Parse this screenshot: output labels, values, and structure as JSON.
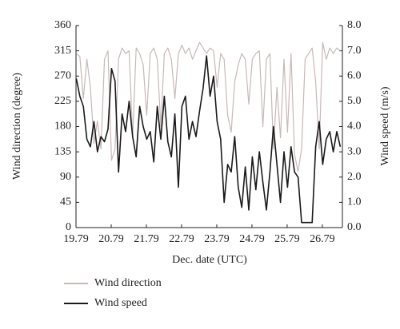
{
  "chart_data": {
    "type": "line",
    "x_label": "Dec. date (UTC)",
    "y_label": "Wind direction (degree)",
    "y2_label": "Wind speed (m/s)",
    "xlim": [
      19.79,
      27.36
    ],
    "xticks": [
      19.79,
      20.79,
      21.79,
      22.79,
      23.79,
      24.79,
      25.79,
      26.79
    ],
    "ylim": [
      0,
      360
    ],
    "yticks": [
      0,
      45,
      90,
      135,
      180,
      225,
      270,
      315,
      360
    ],
    "y2lim": [
      0,
      8
    ],
    "y2ticks": [
      {
        "value": 0,
        "label": "0.0"
      },
      {
        "value": 1,
        "label": "1.0"
      },
      {
        "value": 2,
        "label": "2.0"
      },
      {
        "value": 3,
        "label": "3.0"
      },
      {
        "value": 4,
        "label": "4.0"
      },
      {
        "value": 5,
        "label": "5.0"
      },
      {
        "value": 6,
        "label": "6.0"
      },
      {
        "value": 7,
        "label": "7.0"
      },
      {
        "value": 8,
        "label": "8.0"
      }
    ],
    "x": [
      19.8,
      19.9,
      20.0,
      20.1,
      20.2,
      20.3,
      20.4,
      20.5,
      20.6,
      20.7,
      20.8,
      20.9,
      21.0,
      21.1,
      21.2,
      21.3,
      21.4,
      21.5,
      21.6,
      21.7,
      21.8,
      21.9,
      22.0,
      22.1,
      22.2,
      22.3,
      22.4,
      22.5,
      22.6,
      22.7,
      22.8,
      22.9,
      23.0,
      23.1,
      23.2,
      23.3,
      23.4,
      23.5,
      23.6,
      23.7,
      23.8,
      23.9,
      24.0,
      24.1,
      24.2,
      24.3,
      24.4,
      24.5,
      24.6,
      24.7,
      24.8,
      24.9,
      25.0,
      25.1,
      25.2,
      25.3,
      25.4,
      25.5,
      25.6,
      25.7,
      25.8,
      25.9,
      26.0,
      26.1,
      26.2,
      26.3,
      26.4,
      26.5,
      26.6,
      26.7,
      26.8,
      26.9,
      27.0,
      27.1,
      27.2,
      27.3
    ],
    "series": [
      {
        "name": "Wind direction",
        "color": "#c9b8b8",
        "values": [
          310,
          305,
          230,
          300,
          250,
          150,
          190,
          140,
          300,
          315,
          120,
          140,
          300,
          320,
          310,
          315,
          160,
          320,
          310,
          290,
          200,
          310,
          320,
          300,
          180,
          310,
          320,
          300,
          230,
          310,
          325,
          310,
          320,
          300,
          315,
          330,
          320,
          310,
          320,
          315,
          250,
          310,
          300,
          200,
          170,
          260,
          290,
          310,
          300,
          220,
          300,
          310,
          315,
          180,
          300,
          310,
          140,
          250,
          160,
          300,
          170,
          310,
          130,
          100,
          140,
          300,
          310,
          320,
          260,
          140,
          330,
          300,
          320,
          310,
          320,
          315
        ]
      },
      {
        "name": "Wind speed",
        "color": "#1a1a1a",
        "axis": "y2",
        "values": [
          5.9,
          5.2,
          4.8,
          3.5,
          3.2,
          4.2,
          3.0,
          3.6,
          3.4,
          3.9,
          6.3,
          5.8,
          2.2,
          4.5,
          3.8,
          5.0,
          3.6,
          2.8,
          4.8,
          4.0,
          3.5,
          3.8,
          2.6,
          4.8,
          3.5,
          5.2,
          3.4,
          2.8,
          4.5,
          1.6,
          4.8,
          5.2,
          3.5,
          4.2,
          3.6,
          4.6,
          5.5,
          6.8,
          5.2,
          6.0,
          4.2,
          3.5,
          1.0,
          2.5,
          2.2,
          3.6,
          1.6,
          0.8,
          2.4,
          0.7,
          2.8,
          1.5,
          3.0,
          1.8,
          0.7,
          2.2,
          4.0,
          2.5,
          1.0,
          3.0,
          1.6,
          3.2,
          2.2,
          2.0,
          0.2,
          0.2,
          0.2,
          0.2,
          3.2,
          4.2,
          2.5,
          3.5,
          3.8,
          3.0,
          3.8,
          3.2
        ]
      }
    ]
  }
}
